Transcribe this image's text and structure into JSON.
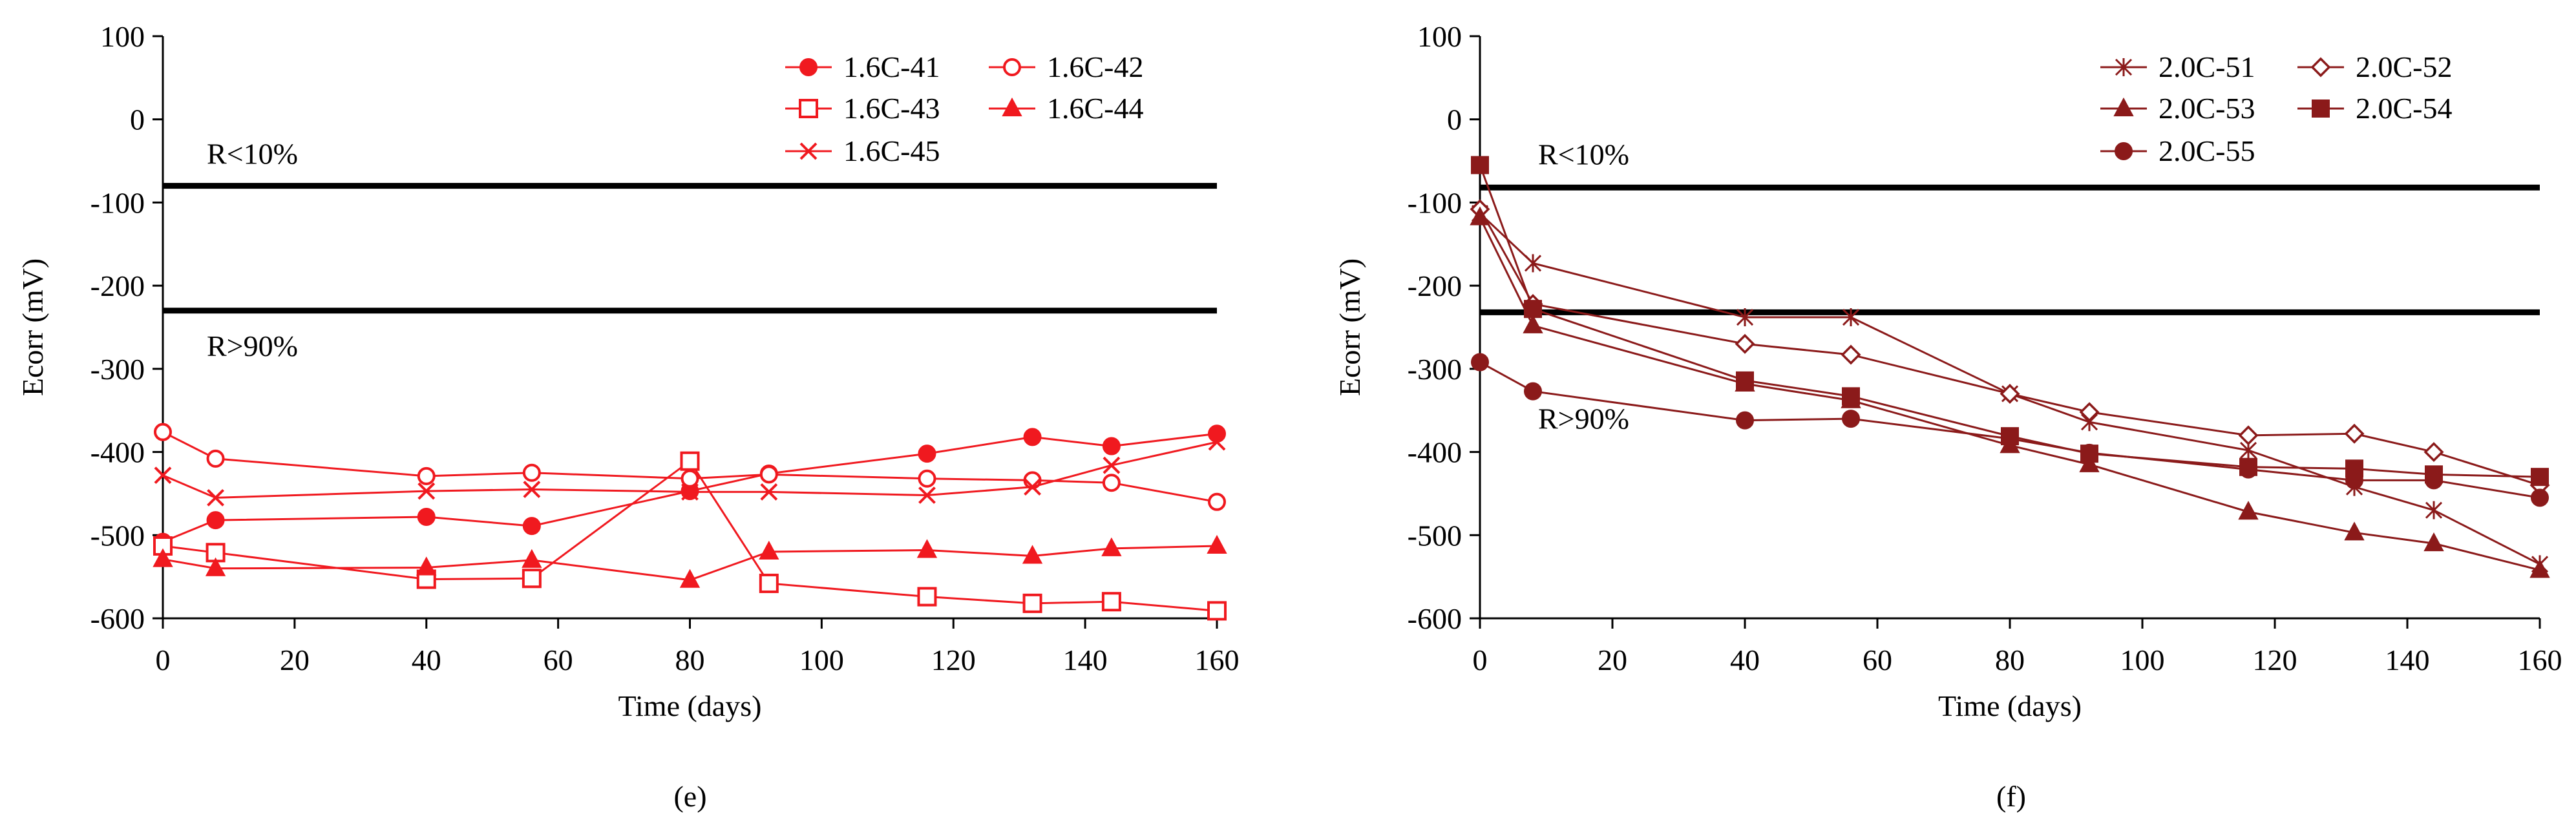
{
  "chart_data": [
    {
      "type": "line",
      "caption": "(e)",
      "xlabel": "Time (days)",
      "ylabel": "Ecorr (mV)",
      "xlim": [
        0,
        160
      ],
      "ylim": [
        -600,
        100
      ],
      "xticks": [
        0,
        20,
        40,
        60,
        80,
        100,
        120,
        140,
        160
      ],
      "yticks": [
        100,
        0,
        -100,
        -200,
        -300,
        -400,
        -500,
        -600
      ],
      "grid": false,
      "legend_position": "top-right",
      "color": "#f0191f",
      "reference_lines": [
        {
          "y": -80,
          "label": "R<10%"
        },
        {
          "y": -230,
          "label": "R>90%"
        }
      ],
      "series": [
        {
          "name": "1.6C-41",
          "marker": "circle-filled",
          "x": [
            0,
            8,
            40,
            56,
            80,
            92,
            116,
            132,
            144,
            160
          ],
          "y": [
            -508,
            -482,
            -478,
            -489,
            -447,
            -426,
            -402,
            -382,
            -393,
            -378
          ]
        },
        {
          "name": "1.6C-42",
          "marker": "circle-open",
          "x": [
            0,
            8,
            40,
            56,
            80,
            92,
            116,
            132,
            144,
            160
          ],
          "y": [
            -376,
            -408,
            -429,
            -425,
            -432,
            -427,
            -432,
            -434,
            -437,
            -460
          ]
        },
        {
          "name": "1.6C-43",
          "marker": "square-open",
          "x": [
            0,
            8,
            40,
            56,
            80,
            92,
            116,
            132,
            144,
            160
          ],
          "y": [
            -513,
            -521,
            -553,
            -552,
            -411,
            -558,
            -574,
            -582,
            -580,
            -591
          ]
        },
        {
          "name": "1.6C-44",
          "marker": "triangle-filled",
          "x": [
            0,
            8,
            40,
            56,
            80,
            92,
            116,
            132,
            144,
            160
          ],
          "y": [
            -529,
            -540,
            -539,
            -530,
            -554,
            -520,
            -518,
            -525,
            -516,
            -513
          ]
        },
        {
          "name": "1.6C-45",
          "marker": "x",
          "x": [
            0,
            8,
            40,
            56,
            80,
            92,
            116,
            132,
            144,
            160
          ],
          "y": [
            -428,
            -455,
            -447,
            -445,
            -448,
            -448,
            -452,
            -442,
            -416,
            -388
          ]
        }
      ]
    },
    {
      "type": "line",
      "caption": "(f)",
      "xlabel": "Time (days)",
      "ylabel": "Ecorr (mV)",
      "xlim": [
        0,
        160
      ],
      "ylim": [
        -600,
        100
      ],
      "xticks": [
        0,
        20,
        40,
        60,
        80,
        100,
        120,
        140,
        160
      ],
      "yticks": [
        100,
        0,
        -100,
        -200,
        -300,
        -400,
        -500,
        -600
      ],
      "grid": false,
      "legend_position": "top-right",
      "color": "#8b1a1a",
      "reference_lines": [
        {
          "y": -82,
          "label": "R<10%"
        },
        {
          "y": -232,
          "label": "R>90%"
        }
      ],
      "series": [
        {
          "name": "2.0C-51",
          "marker": "asterisk",
          "x": [
            0,
            8,
            40,
            56,
            80,
            92,
            116,
            132,
            144,
            160
          ],
          "y": [
            -113,
            -173,
            -238,
            -238,
            -330,
            -364,
            -398,
            -442,
            -470,
            -535
          ]
        },
        {
          "name": "2.0C-52",
          "marker": "diamond-open",
          "x": [
            0,
            8,
            40,
            56,
            80,
            92,
            116,
            132,
            144,
            160
          ],
          "y": [
            -108,
            -222,
            -270,
            -283,
            -330,
            -352,
            -380,
            -378,
            -400,
            -440
          ]
        },
        {
          "name": "2.0C-53",
          "marker": "triangle-filled",
          "x": [
            0,
            8,
            40,
            56,
            80,
            92,
            116,
            132,
            144,
            160
          ],
          "y": [
            -118,
            -248,
            -318,
            -338,
            -392,
            -415,
            -472,
            -497,
            -510,
            -542
          ]
        },
        {
          "name": "2.0C-54",
          "marker": "square-filled",
          "x": [
            0,
            8,
            40,
            56,
            80,
            92,
            116,
            132,
            144,
            160
          ],
          "y": [
            -55,
            -228,
            -314,
            -333,
            -381,
            -402,
            -418,
            -420,
            -427,
            -430
          ]
        },
        {
          "name": "2.0C-55",
          "marker": "circle-filled",
          "x": [
            0,
            8,
            40,
            56,
            80,
            92,
            116,
            132,
            144,
            160
          ],
          "y": [
            -292,
            -327,
            -362,
            -360,
            -384,
            -401,
            -421,
            -434,
            -434,
            -455
          ]
        }
      ]
    }
  ]
}
